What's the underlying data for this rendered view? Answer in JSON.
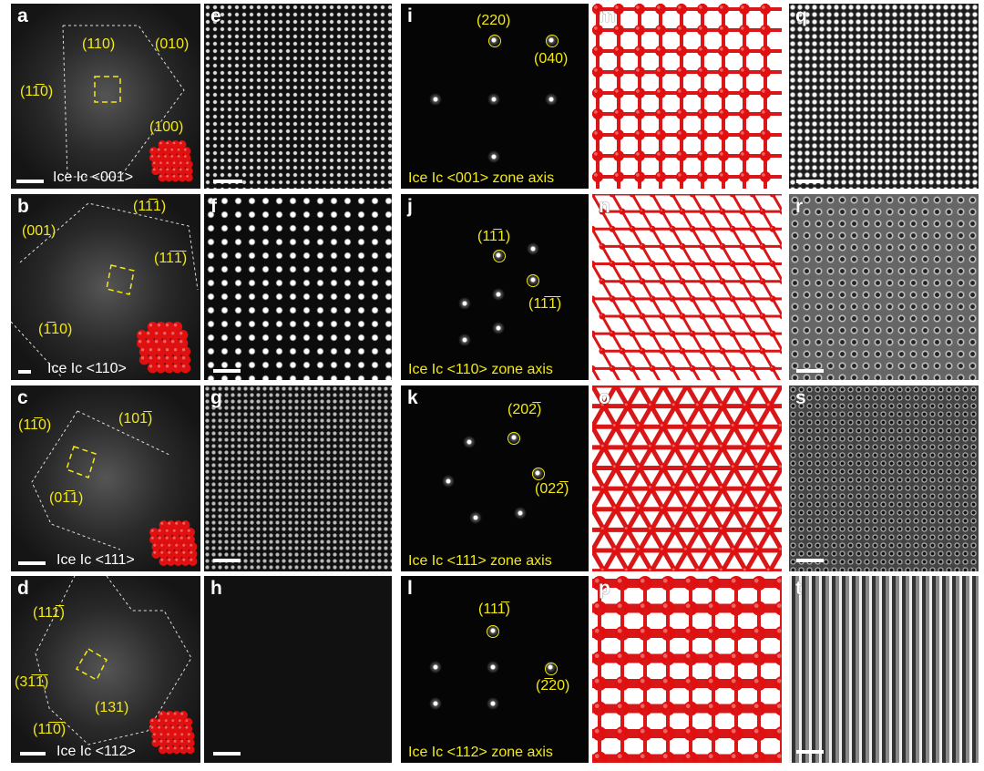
{
  "panels": {
    "a": {
      "letter": "a",
      "labels": [
        "(110)",
        "(010)",
        "(11̅0)",
        "(100)"
      ],
      "zone": "Ice Ic <001>"
    },
    "b": {
      "letter": "b",
      "labels": [
        "(001)",
        "(11̅1)",
        "(11̅1̅)",
        "(1̅10)"
      ],
      "zone": "Ice Ic <110>"
    },
    "c": {
      "letter": "c",
      "labels": [
        "(11̅0)",
        "(101̅)",
        "(01̅1)"
      ],
      "zone": "Ice Ic <111>"
    },
    "d": {
      "letter": "d",
      "labels": [
        "(111̅)",
        "(31̅1̅)",
        "(131)",
        "(11̅0̅)"
      ],
      "zone": "Ice Ic <112>"
    },
    "e": {
      "letter": "e"
    },
    "f": {
      "letter": "f"
    },
    "g": {
      "letter": "g"
    },
    "h": {
      "letter": "h"
    },
    "i": {
      "letter": "i",
      "labels": [
        "(220)",
        "(040)"
      ],
      "zone": "Ice Ic <001> zone axis"
    },
    "j": {
      "letter": "j",
      "labels": [
        "(11̅1)",
        "(11̅1̅)"
      ],
      "zone": "Ice Ic <110> zone axis"
    },
    "k": {
      "letter": "k",
      "labels": [
        "(202̅)",
        "(022̅)"
      ],
      "zone": "Ice Ic <111> zone axis"
    },
    "l": {
      "letter": "l",
      "labels": [
        "(111̅)",
        "(2̅20)"
      ],
      "zone": "Ice Ic <112> zone axis"
    },
    "m": {
      "letter": "m"
    },
    "n": {
      "letter": "n"
    },
    "o": {
      "letter": "o"
    },
    "p": {
      "letter": "p"
    },
    "q": {
      "letter": "q"
    },
    "r": {
      "letter": "r"
    },
    "s": {
      "letter": "s"
    },
    "t": {
      "letter": "t"
    }
  },
  "colors": {
    "label": "#f4ea10",
    "atom": "#e01010",
    "bond": "#d81818"
  }
}
